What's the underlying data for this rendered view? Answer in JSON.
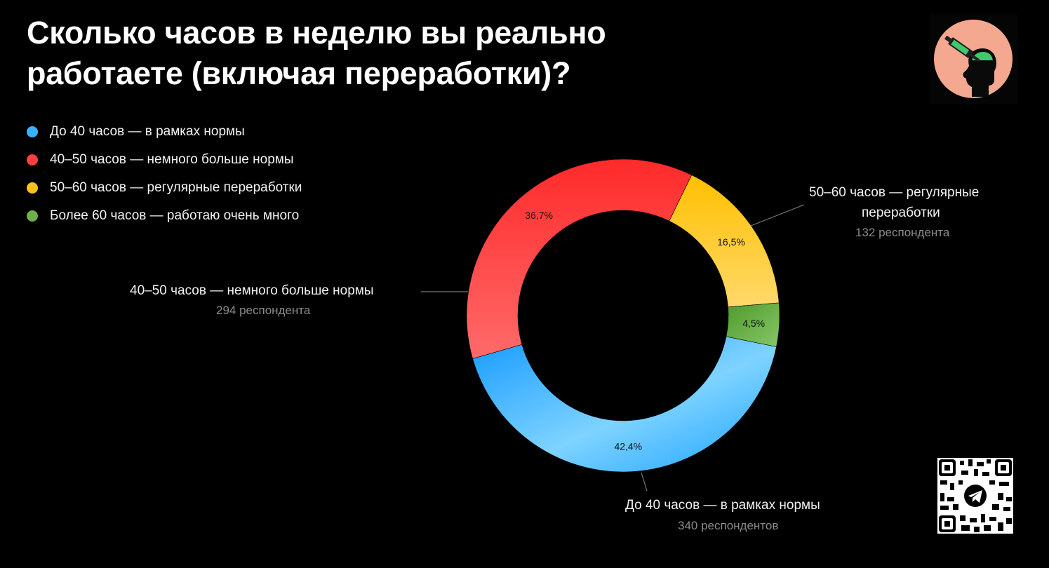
{
  "title": "Сколько часов в неделю вы реально работаете (включая переработки)?",
  "legend": [
    {
      "label": "До 40 часов — в рамках нормы",
      "color": "#3ab0ff"
    },
    {
      "label": "40–50 часов — немного больше нормы",
      "color": "#ff4040"
    },
    {
      "label": "50–60 часов — регулярные переработки",
      "color": "#ffc21a"
    },
    {
      "label": "Более 60 часов — работаю очень много",
      "color": "#6fb04a"
    }
  ],
  "callouts": {
    "over40": {
      "name": "40–50 часов — немного больше нормы",
      "count": "294 респондента"
    },
    "over50_line1": "50–60 часов — регулярные",
    "over50_line2": "переработки",
    "over50_count": "132 респондента",
    "under40": {
      "name": "До 40 часов — в рамках нормы",
      "count": "340 респондентов"
    }
  },
  "chart_data": {
    "type": "pie",
    "donut": true,
    "legend_position": "top-left",
    "slices": [
      {
        "label": "До 40 часов — в рамках нормы",
        "value": 42.4,
        "value_label": "42,4%",
        "respondents": 340,
        "color": "#3ab0ff"
      },
      {
        "label": "Более 60 часов — работаю очень много",
        "value": 4.5,
        "value_label": "4,5%",
        "color": "#6fb04a"
      },
      {
        "label": "50–60 часов — регулярные переработки",
        "value": 16.5,
        "value_label": "16,5%",
        "respondents": 132,
        "color": "#ffc21a"
      },
      {
        "label": "40–50 часов — немного больше нормы",
        "value": 36.7,
        "value_label": "36,7%",
        "respondents": 294,
        "color": "#ff4040"
      }
    ]
  },
  "icons": {
    "logo": "head-syringe-logo-icon",
    "qr": "telegram-qr-code-icon"
  }
}
